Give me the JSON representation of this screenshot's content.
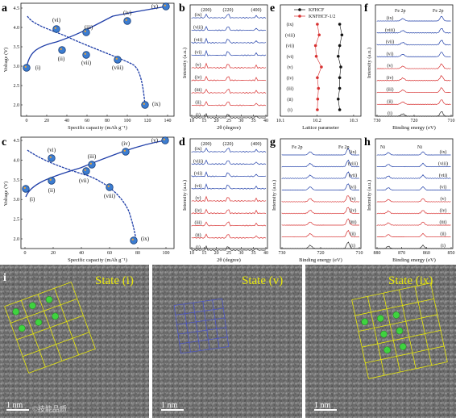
{
  "panel_labels": [
    "a",
    "b",
    "e",
    "f",
    "c",
    "d",
    "g",
    "h",
    "i"
  ],
  "states": [
    "(i)",
    "(ii)",
    "(iii)",
    "(iv)",
    "(v)",
    "(vi)",
    "(vii)",
    "(viii)",
    "(ix)"
  ],
  "states_rev": [
    "(ix)",
    "(viii)",
    "(vii)",
    "(vi)",
    "(v)",
    "(iv)",
    "(iii)",
    "(ii)",
    "(i)"
  ],
  "panel_a": {
    "xlabel": "Specific capacity (mAh g⁻¹)",
    "ylabel": "Voltage (V)",
    "xticks": [
      "0",
      "20",
      "40",
      "60",
      "80",
      "100",
      "120",
      "140"
    ],
    "yticks": [
      "4.5",
      "4.0",
      "3.5",
      "3.0",
      "2.5",
      "2.0"
    ]
  },
  "panel_c": {
    "xlabel": "Specific capacity (mAh g⁻¹)",
    "ylabel": "Voltage (V)",
    "xticks": [
      "0",
      "20",
      "40",
      "60",
      "80",
      "100"
    ],
    "yticks": [
      "4.5",
      "4.0",
      "3.5",
      "3.0",
      "2.5",
      "2.0"
    ]
  },
  "xrd": {
    "xlabel": "2θ (degree)",
    "ylabel": "Intensity (a.u.)",
    "xticks": [
      "10",
      "15",
      "20",
      "25",
      "30",
      "35",
      "40"
    ],
    "peaks": [
      "(200)",
      "(220)",
      "(400)"
    ]
  },
  "panel_e": {
    "xlabel": "Lattice parameter",
    "xticks": [
      "10.1",
      "10.2",
      "10.3"
    ],
    "legend": [
      "KFHCF",
      "KNFHCF-1/2"
    ]
  },
  "panel_f": {
    "xlabel": "Binding energy (eV)",
    "ylabel": "Intensity (a.u.)",
    "xticks": [
      "730",
      "720",
      "710"
    ],
    "peak_label": "Fe 2p"
  },
  "panel_g": {
    "xlabel": "Binding energy (eV)",
    "ylabel": "Intensity (a.u.)",
    "xticks": [
      "730",
      "720",
      "710"
    ],
    "peak_label": "Fe 2p"
  },
  "panel_h": {
    "xlabel": "Binding energy (eV)",
    "ylabel": "Intensity (a.u.)",
    "xticks": [
      "880",
      "870",
      "860",
      "850"
    ],
    "peak_label": "Ni"
  },
  "images": [
    {
      "state": "State (i)",
      "scale": "1 nm"
    },
    {
      "state": "State (v)",
      "scale": "1 nm"
    },
    {
      "state": "State (ix)",
      "scale": "1 nm"
    }
  ],
  "watermark": "©技能品质",
  "colors": {
    "charge": "#1f3ea8",
    "discharge": "#1f3ea8",
    "red_series": "#d73030",
    "grid": "#e8e80a",
    "green_atom": "#3fd33f"
  }
}
